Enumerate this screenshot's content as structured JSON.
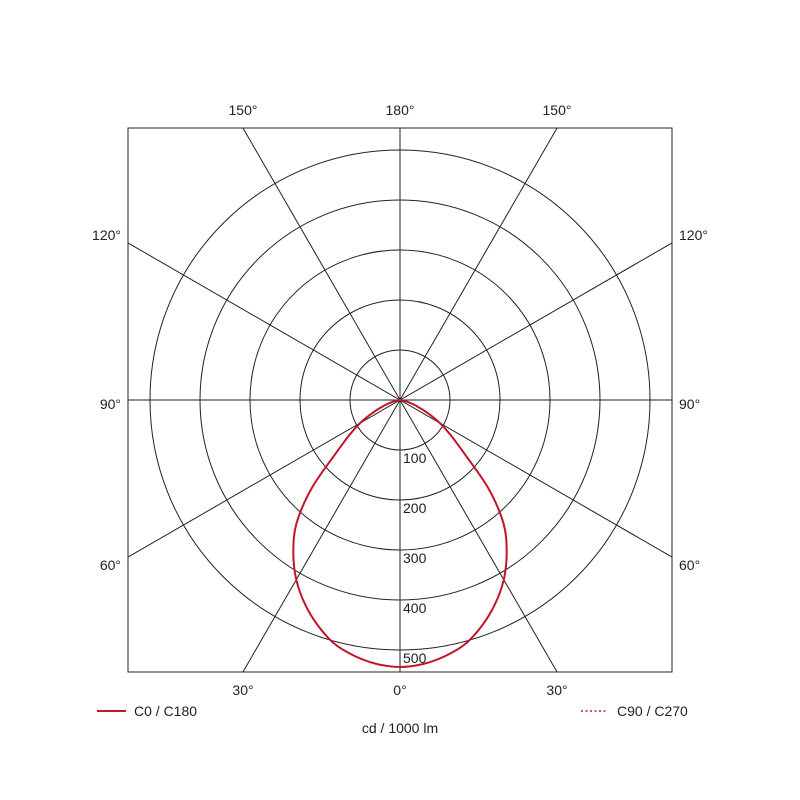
{
  "chart_data": {
    "type": "polar-line",
    "unit_label": "cd / 1000 lm",
    "radial_ticks": [
      100,
      200,
      300,
      400,
      500
    ],
    "rlim": [
      0,
      544
    ],
    "grid": true,
    "angle_labels": {
      "bottom": [
        "30°",
        "0°",
        "30°"
      ],
      "top": [
        "150°",
        "180°",
        "150°"
      ],
      "left": [
        "120°",
        "90°",
        "60°"
      ],
      "right": [
        "120°",
        "90°",
        "60°"
      ]
    },
    "legend": {
      "placement": "bottom",
      "entries": [
        "C0 / C180",
        "C90 / C270"
      ]
    },
    "angles_deg": [
      0,
      5,
      10,
      15,
      20,
      25,
      30,
      35,
      40,
      45,
      50,
      55,
      60,
      65,
      70,
      75,
      80,
      85,
      90
    ],
    "series": [
      {
        "name": "C0 / C180",
        "style": "solid",
        "color": "#c0182a",
        "values": [
          534,
          530,
          520,
          505,
          480,
          450,
          415,
          372,
          322,
          250,
          170,
          125,
          92,
          60,
          36,
          18,
          8,
          3,
          0
        ]
      },
      {
        "name": "C90 / C270",
        "style": "dotted",
        "color": "#c0182a",
        "values": [
          534,
          530,
          520,
          505,
          480,
          450,
          415,
          372,
          322,
          250,
          170,
          125,
          92,
          60,
          36,
          18,
          8,
          3,
          0
        ]
      }
    ]
  }
}
